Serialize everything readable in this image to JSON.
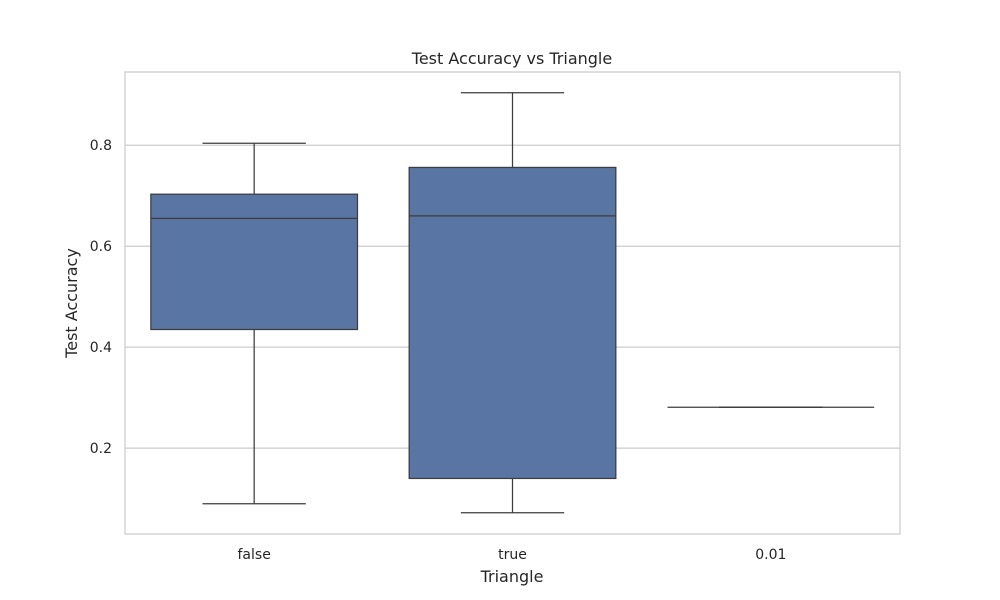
{
  "chart_data": {
    "type": "box",
    "title": "Test Accuracy vs Triangle",
    "xlabel": "Triangle",
    "ylabel": "Test Accuracy",
    "categories": [
      "false",
      "true",
      "0.01"
    ],
    "boxes": [
      {
        "category": "false",
        "whisker_low": 0.09,
        "q1": 0.435,
        "median": 0.655,
        "q3": 0.703,
        "whisker_high": 0.804
      },
      {
        "category": "true",
        "whisker_low": 0.072,
        "q1": 0.14,
        "median": 0.66,
        "q3": 0.756,
        "whisker_high": 0.904
      },
      {
        "category": "0.01",
        "whisker_low": 0.281,
        "q1": 0.281,
        "median": 0.281,
        "q3": 0.281,
        "whisker_high": 0.281
      }
    ],
    "yticks": [
      0.2,
      0.4,
      0.6,
      0.8
    ],
    "ylim": [
      0.03,
      0.945
    ],
    "grid": "horizontal",
    "colors": {
      "box_fill": "#5875a4",
      "line": "#3d3d3d",
      "grid": "#cccccc",
      "frame": "#cccccc"
    }
  }
}
